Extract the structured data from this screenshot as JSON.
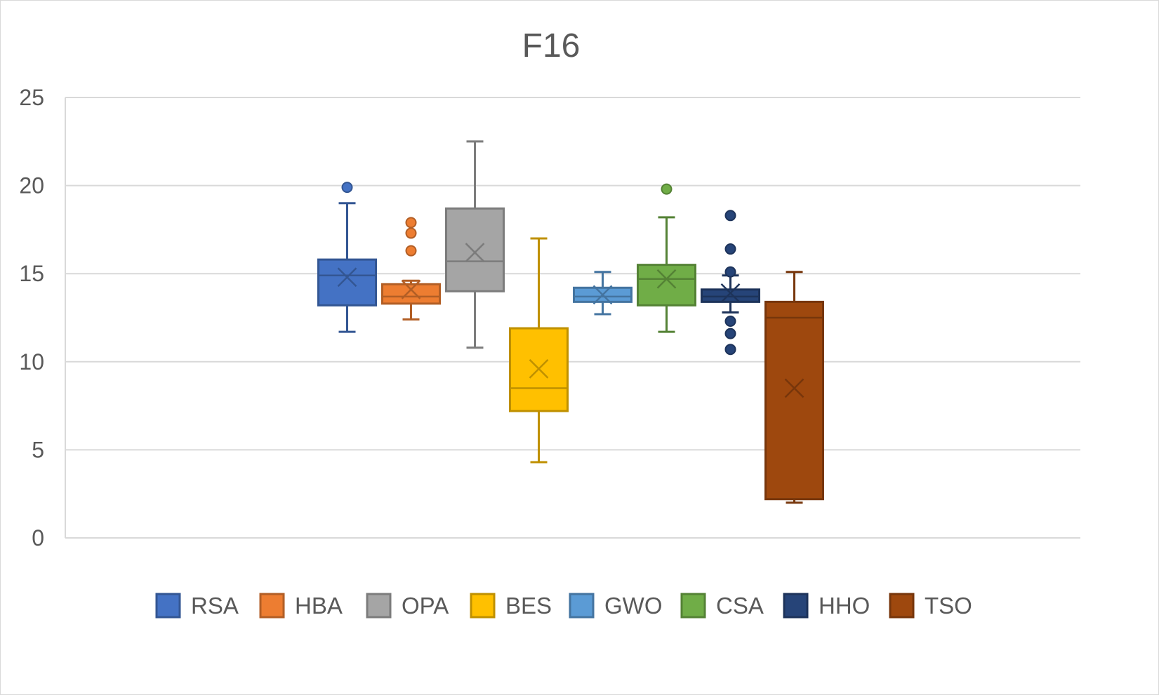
{
  "chart_data": {
    "type": "box",
    "title": "F16",
    "xlabel": "",
    "ylabel": "",
    "ylim": [
      0,
      25
    ],
    "yticks": [
      "0",
      "5",
      "10",
      "15",
      "20",
      "25"
    ],
    "grid": true,
    "legend_position": "bottom",
    "series": [
      {
        "name": "RSA",
        "color": "#4472c4",
        "min": 11.7,
        "q1": 13.2,
        "median": 14.9,
        "q3": 15.8,
        "max": 19.0,
        "mean": 14.8,
        "outliers": [
          19.9
        ]
      },
      {
        "name": "HBA",
        "color": "#ed7d31",
        "min": 12.4,
        "q1": 13.3,
        "median": 13.7,
        "q3": 14.4,
        "max": 14.6,
        "mean": 14.1,
        "outliers": [
          16.3,
          17.3,
          17.9
        ]
      },
      {
        "name": "OPA",
        "color": "#a5a5a5",
        "min": 10.8,
        "q1": 14.0,
        "median": 15.7,
        "q3": 18.7,
        "max": 22.5,
        "mean": 16.2,
        "outliers": []
      },
      {
        "name": "BES",
        "color": "#ffc000",
        "min": 4.3,
        "q1": 7.2,
        "median": 8.5,
        "q3": 11.9,
        "max": 17.0,
        "mean": 9.6,
        "outliers": []
      },
      {
        "name": "GWO",
        "color": "#5b9bd5",
        "min": 12.7,
        "q1": 13.4,
        "median": 13.7,
        "q3": 14.2,
        "max": 15.1,
        "mean": 13.8,
        "outliers": []
      },
      {
        "name": "CSA",
        "color": "#70ad47",
        "min": 11.7,
        "q1": 13.2,
        "median": 14.7,
        "q3": 15.5,
        "max": 18.2,
        "mean": 14.7,
        "outliers": [
          19.8
        ]
      },
      {
        "name": "HHO",
        "color": "#264478",
        "min": 12.8,
        "q1": 13.4,
        "median": 13.7,
        "q3": 14.1,
        "max": 14.9,
        "mean": 13.9,
        "outliers": [
          10.7,
          11.6,
          12.3,
          15.1,
          16.4,
          18.3
        ]
      },
      {
        "name": "TSO",
        "color": "#9e480e",
        "min": 2.0,
        "q1": 2.2,
        "median": 12.5,
        "q3": 13.4,
        "max": 15.1,
        "mean": 8.5,
        "outliers": []
      }
    ]
  }
}
